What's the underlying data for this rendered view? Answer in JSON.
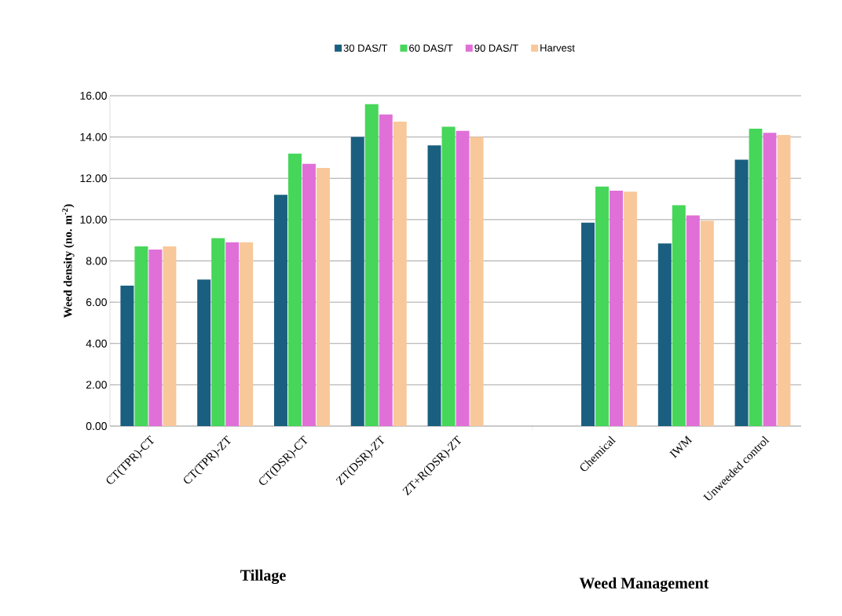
{
  "chart_data": {
    "type": "bar",
    "ylabel": "Weed density (no. m$^{-2}$)",
    "categories": [
      "CT(TPR)-CT",
      "CT(TPR)-ZT",
      "CT(DSR)-CT",
      "ZT(DSR)-ZT",
      "ZT+R(DSR)-ZT",
      null,
      "Chemical",
      "IWM",
      "Unweeded control"
    ],
    "series": [
      {
        "name": "30 DAS/T",
        "color": "#1a5f80",
        "values": [
          6.8,
          7.1,
          11.2,
          14.0,
          13.6,
          0,
          9.85,
          8.85,
          12.9
        ]
      },
      {
        "name": "60 DAS/T",
        "color": "#46d65a",
        "values": [
          8.7,
          9.1,
          13.2,
          15.6,
          14.5,
          0,
          11.6,
          10.7,
          14.4
        ]
      },
      {
        "name": "90 DAS/T",
        "color": "#e070d8",
        "values": [
          8.55,
          8.9,
          12.7,
          15.1,
          14.3,
          0,
          11.4,
          10.2,
          14.2
        ]
      },
      {
        "name": "Harvest",
        "color": "#f8c89a",
        "values": [
          8.7,
          8.9,
          12.5,
          14.75,
          14.0,
          0,
          11.35,
          9.95,
          14.1
        ]
      }
    ],
    "ylim": [
      0,
      16
    ],
    "yticks": [
      {
        "value": 0,
        "label": "0.00"
      },
      {
        "value": 2,
        "label": "2.00"
      },
      {
        "value": 4,
        "label": "4.00"
      },
      {
        "value": 6,
        "label": "6.00"
      },
      {
        "value": 8,
        "label": "8.00"
      },
      {
        "value": 10,
        "label": "10.00"
      },
      {
        "value": 12,
        "label": "12.00"
      },
      {
        "value": 14,
        "label": "14.00"
      },
      {
        "value": 16,
        "label": "16.00"
      }
    ],
    "grid": "y",
    "legend": "top",
    "annotations": [
      "Tillage",
      "Weed Management"
    ]
  }
}
